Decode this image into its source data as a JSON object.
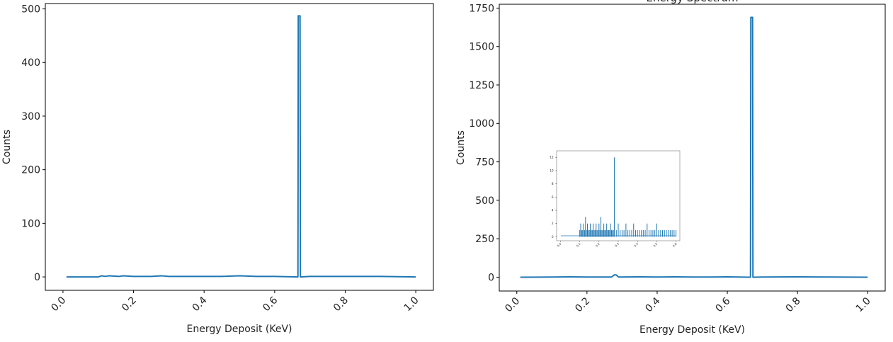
{
  "colors": {
    "series": "#1f77b4",
    "axis": "#000000",
    "text": "#222222"
  },
  "chart_data": [
    {
      "type": "line",
      "title": "",
      "xlabel": "Energy Deposit (KeV)",
      "ylabel": "Counts",
      "xlim": [
        -0.05,
        1.05
      ],
      "ylim": [
        -25,
        510
      ],
      "xticks": [
        0.0,
        0.2,
        0.4,
        0.6,
        0.8,
        1.0
      ],
      "xtick_labels": [
        "0.0",
        "0.2",
        "0.4",
        "0.6",
        "0.8",
        "1.0"
      ],
      "yticks": [
        0,
        100,
        200,
        300,
        400,
        500
      ],
      "ytick_labels": [
        "0",
        "100",
        "200",
        "300",
        "400",
        "500"
      ],
      "grid": false,
      "series": [
        {
          "x": [
            0.01,
            0.1,
            0.11,
            0.12,
            0.13,
            0.16,
            0.17,
            0.2,
            0.25,
            0.28,
            0.3,
            0.35,
            0.4,
            0.45,
            0.5,
            0.55,
            0.6,
            0.666,
            0.667,
            0.672,
            0.673,
            0.7,
            0.8,
            0.9,
            1.0
          ],
          "y": [
            0,
            0,
            2,
            1,
            2,
            1,
            2,
            1,
            1,
            2,
            1,
            1,
            1,
            1,
            2,
            1,
            1,
            0,
            487,
            487,
            0,
            1,
            1,
            1,
            0
          ]
        }
      ]
    },
    {
      "type": "line",
      "title": "Energy Spectrum",
      "xlabel": "Energy Deposit (KeV)",
      "ylabel": "Counts",
      "xlim": [
        -0.05,
        1.05
      ],
      "ylim": [
        -90,
        1775
      ],
      "xticks": [
        0.0,
        0.2,
        0.4,
        0.6,
        0.8,
        1.0
      ],
      "xtick_labels": [
        "0.0",
        "0.2",
        "0.4",
        "0.6",
        "0.8",
        "1.0"
      ],
      "yticks": [
        0,
        250,
        500,
        750,
        1000,
        1250,
        1500,
        1750
      ],
      "ytick_labels": [
        "0",
        "250",
        "500",
        "750",
        "1000",
        "1250",
        "1500",
        "1750"
      ],
      "grid": false,
      "series": [
        {
          "x": [
            0.01,
            0.1,
            0.15,
            0.2,
            0.27,
            0.278,
            0.283,
            0.29,
            0.35,
            0.4,
            0.45,
            0.5,
            0.55,
            0.6,
            0.666,
            0.667,
            0.672,
            0.673,
            0.7,
            0.8,
            0.9,
            1.0
          ],
          "y": [
            0,
            1,
            2,
            1,
            1,
            15,
            15,
            1,
            2,
            1,
            2,
            1,
            1,
            2,
            0,
            1690,
            1690,
            0,
            1,
            2,
            1,
            0
          ]
        }
      ],
      "inset": {
        "type": "bar",
        "title": "",
        "xlim": [
          -0.02,
          0.62
        ],
        "ylim": [
          -0.6,
          13
        ],
        "xticks": [
          0.0,
          0.1,
          0.2,
          0.3,
          0.4,
          0.5,
          0.6
        ],
        "xtick_labels": [
          "0.0",
          "0.1",
          "0.2",
          "0.3",
          "0.4",
          "0.5",
          "0.6"
        ],
        "yticks": [
          0,
          2,
          4,
          6,
          8,
          10,
          12
        ],
        "ytick_labels": [
          "0",
          "2",
          "4",
          "6",
          "8",
          "10",
          "12"
        ],
        "baseline": 0.15,
        "x": [
          0.1,
          0.105,
          0.11,
          0.115,
          0.12,
          0.125,
          0.13,
          0.135,
          0.14,
          0.145,
          0.15,
          0.155,
          0.16,
          0.165,
          0.17,
          0.175,
          0.18,
          0.185,
          0.19,
          0.195,
          0.2,
          0.205,
          0.21,
          0.215,
          0.22,
          0.225,
          0.23,
          0.235,
          0.24,
          0.245,
          0.25,
          0.255,
          0.26,
          0.265,
          0.27,
          0.275,
          0.28,
          0.29,
          0.3,
          0.31,
          0.32,
          0.33,
          0.34,
          0.35,
          0.36,
          0.37,
          0.38,
          0.39,
          0.4,
          0.41,
          0.42,
          0.43,
          0.44,
          0.45,
          0.46,
          0.47,
          0.48,
          0.49,
          0.5,
          0.51,
          0.52,
          0.53,
          0.54,
          0.55,
          0.56,
          0.57,
          0.58,
          0.59,
          0.6
        ],
        "values": [
          1,
          2,
          1,
          1,
          2,
          1,
          3,
          1,
          2,
          1,
          1,
          2,
          1,
          1,
          2,
          1,
          1,
          2,
          1,
          1,
          2,
          1,
          3,
          1,
          1,
          2,
          1,
          1,
          2,
          1,
          1,
          1,
          2,
          1,
          1,
          1,
          12,
          1,
          2,
          1,
          1,
          1,
          2,
          1,
          1,
          1,
          2,
          1,
          1,
          1,
          1,
          1,
          1,
          2,
          1,
          1,
          1,
          1,
          2,
          1,
          1,
          1,
          1,
          1,
          1,
          1,
          1,
          1,
          1
        ]
      }
    }
  ]
}
